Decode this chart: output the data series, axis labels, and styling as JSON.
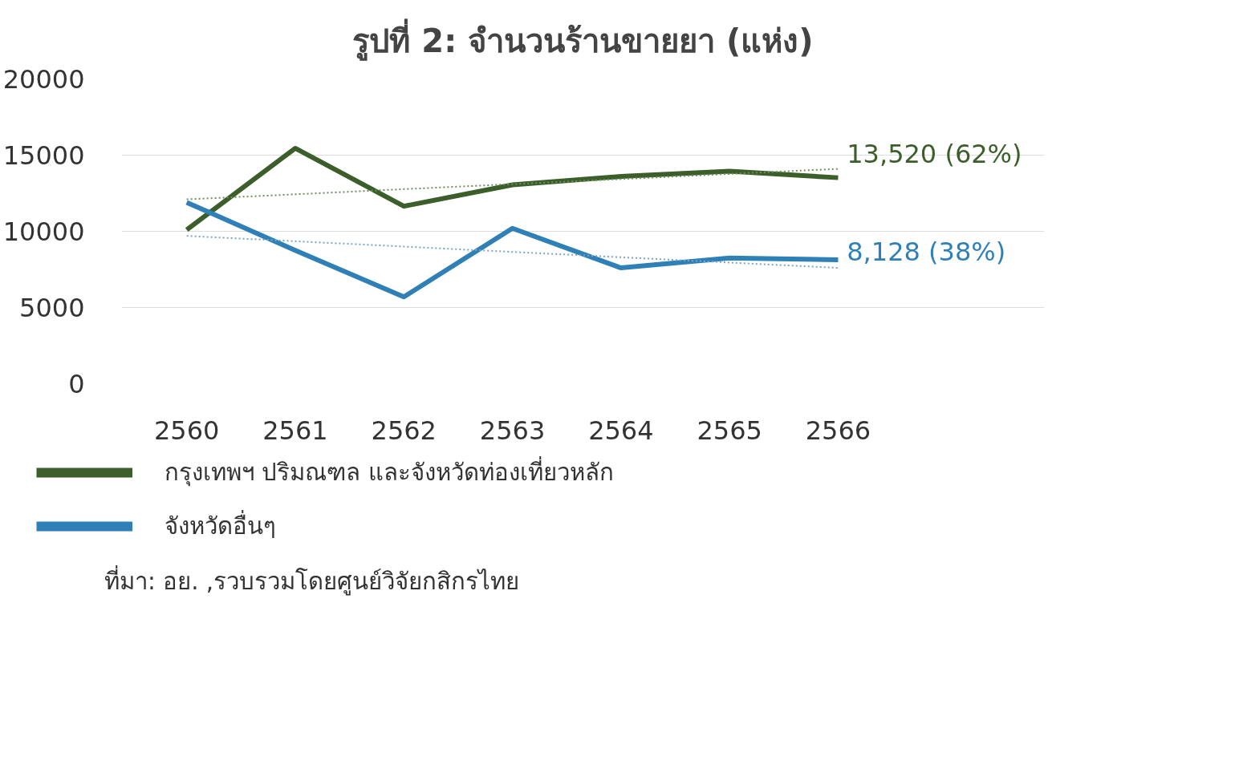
{
  "chart_data": {
    "type": "line",
    "title": "รูปที่ 2: จำนวนร้านขายยา (แห่ง)",
    "categories": [
      "2560",
      "2561",
      "2562",
      "2563",
      "2564",
      "2565",
      "2566"
    ],
    "series": [
      {
        "name": "กรุงเทพฯ ปริมณฑล และจังหวัดท่องเที่ยวหลัก",
        "color": "#3b5e2b",
        "values": [
          10100,
          15450,
          11650,
          13050,
          13600,
          13950,
          13520
        ]
      },
      {
        "name": "จังหวัดอื่นๆ",
        "color": "#2f80b7",
        "values": [
          11900,
          8750,
          5700,
          10200,
          7600,
          8250,
          8128
        ]
      },
      {
        "type": "line",
        "color": "#6f8f60",
        "line_style": "dotted",
        "values": [
          12100,
          12430,
          12770,
          13100,
          13430,
          13770,
          14100
        ]
      },
      {
        "type": "line",
        "color": "#7aa6c8",
        "line_style": "dotted",
        "values": [
          9700,
          9350,
          9000,
          8650,
          8300,
          7950,
          7600
        ]
      }
    ],
    "ylim": [
      0,
      20000
    ],
    "yticks": [
      0,
      5000,
      10000,
      15000,
      20000
    ],
    "grid": "y",
    "legend": "bottom",
    "line_style": "solid",
    "annotations": [
      {
        "text": "13,520 (62%)",
        "x": "2566",
        "y": 13520
      },
      {
        "text": "8,128 (38%)",
        "x": "2566",
        "y": 8128
      },
      "ที่มา: อย. ,รวบรวมโดยศูนย์วิจัยกสิกรไทย"
    ]
  }
}
